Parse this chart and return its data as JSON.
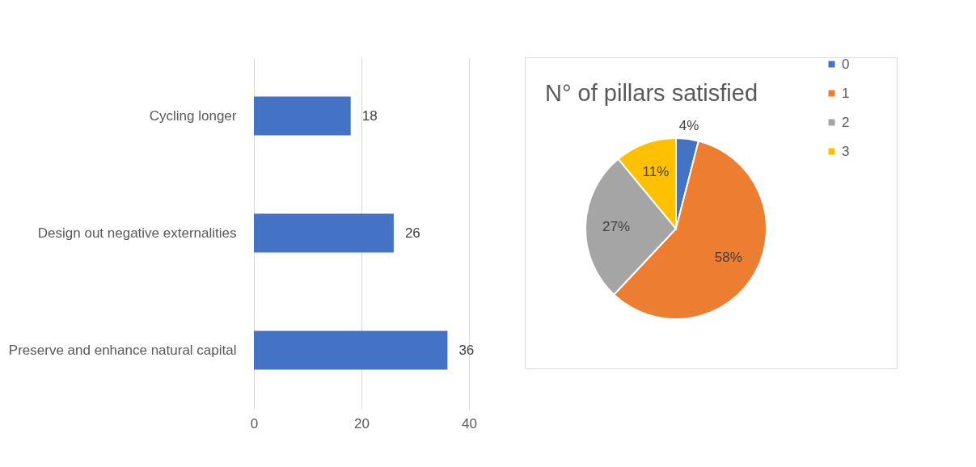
{
  "chart_data": [
    {
      "type": "bar",
      "orientation": "horizontal",
      "categories": [
        "Cycling longer",
        "Design out negative externalities",
        "Preserve and enhance natural capital"
      ],
      "values": [
        18,
        26,
        36
      ],
      "color": "#4472c4",
      "xlim": [
        0,
        40
      ],
      "xticks": [
        0,
        20,
        40
      ],
      "grid": "x",
      "data_labels": true
    },
    {
      "type": "pie",
      "title": "N° of pillars satisfied",
      "categories": [
        "0",
        "1",
        "2",
        "3"
      ],
      "values": [
        4,
        58,
        27,
        11
      ],
      "colors": [
        "#4472c4",
        "#ed7d31",
        "#a5a5a5",
        "#ffc000"
      ],
      "value_labels": [
        "4%",
        "58%",
        "27%",
        "11%"
      ],
      "legend": "right"
    }
  ]
}
